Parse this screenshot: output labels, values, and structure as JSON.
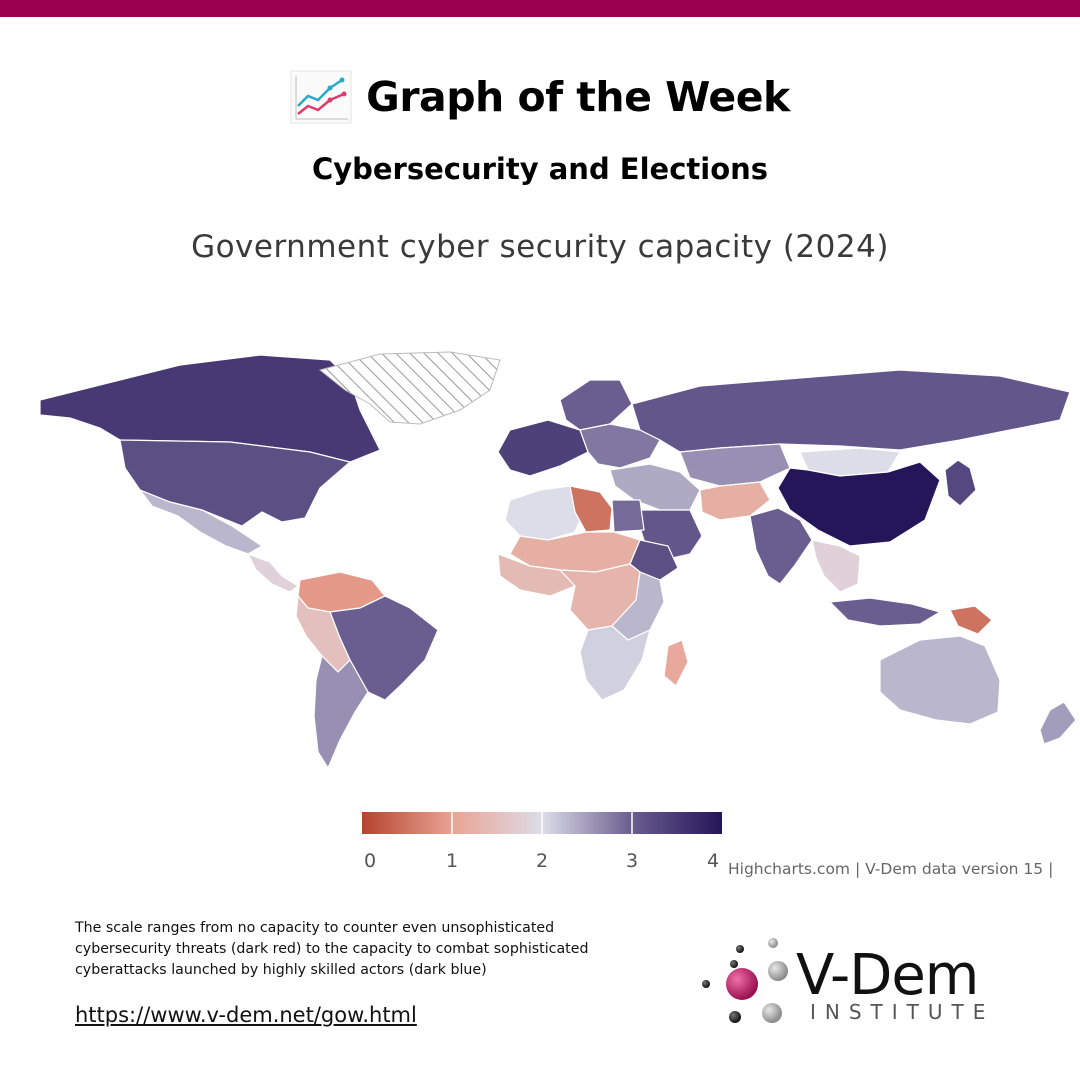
{
  "header": {
    "title": "Graph of the Week",
    "icon": "chart-line-icon",
    "bar_color": "#990050"
  },
  "subtitle": "Cybersecurity and Elections",
  "chart_data": {
    "type": "choropleth",
    "title": "Government cyber security capacity (2024)",
    "legend": {
      "min": 0,
      "max": 4,
      "ticks": [
        "0",
        "1",
        "2",
        "3",
        "4"
      ],
      "colors": [
        "#b5432f",
        "#e9a393",
        "#dcdde8",
        "#6a5d8f",
        "#251559"
      ]
    },
    "regions": [
      {
        "name": "Canada",
        "value": 3.5
      },
      {
        "name": "United States",
        "value": 3.2
      },
      {
        "name": "Mexico",
        "value": 2.3
      },
      {
        "name": "Central America",
        "value": 1.8
      },
      {
        "name": "Colombia/Venezuela",
        "value": 0.9
      },
      {
        "name": "Peru/Bolivia",
        "value": 1.5
      },
      {
        "name": "Brazil",
        "value": 3.0
      },
      {
        "name": "Argentina/Chile",
        "value": 2.6
      },
      {
        "name": "Greenland",
        "value": null
      },
      {
        "name": "Western Europe",
        "value": 3.4
      },
      {
        "name": "Scandinavia",
        "value": 3.0
      },
      {
        "name": "Eastern Europe",
        "value": 2.8
      },
      {
        "name": "Russia",
        "value": 3.1
      },
      {
        "name": "Central Asia",
        "value": 2.6
      },
      {
        "name": "Mongolia",
        "value": 2.0
      },
      {
        "name": "China",
        "value": 4.0
      },
      {
        "name": "Japan/Korea",
        "value": 3.3
      },
      {
        "name": "Middle East",
        "value": 2.4
      },
      {
        "name": "Saudi Arabia",
        "value": 3.1
      },
      {
        "name": "Iran/Afghanistan",
        "value": 1.2
      },
      {
        "name": "India",
        "value": 3.0
      },
      {
        "name": "Southeast Asia",
        "value": 1.8
      },
      {
        "name": "Indonesia",
        "value": 3.0
      },
      {
        "name": "Papua New Guinea",
        "value": 0.5
      },
      {
        "name": "Australia",
        "value": 2.3
      },
      {
        "name": "New Zealand",
        "value": 2.5
      },
      {
        "name": "North Africa",
        "value": 2.0
      },
      {
        "name": "Libya",
        "value": 0.5
      },
      {
        "name": "Egypt",
        "value": 2.9
      },
      {
        "name": "Sahel",
        "value": 1.2
      },
      {
        "name": "West Africa",
        "value": 1.4
      },
      {
        "name": "Ethiopia",
        "value": 3.2
      },
      {
        "name": "Central Africa",
        "value": 1.3
      },
      {
        "name": "East Africa",
        "value": 2.3
      },
      {
        "name": "Southern Africa",
        "value": 2.1
      },
      {
        "name": "Madagascar",
        "value": 1.1
      }
    ]
  },
  "credits": "Highcharts.com | V-Dem data version 15 |",
  "note": "The scale ranges from no capacity to counter even unsophisticated cybersecurity threats (dark red) to the capacity to combat sophisticated cyberattacks launched by highly skilled actors (dark blue)",
  "url": "https://www.v-dem.net/gow.html",
  "logo": {
    "name": "V-Dem",
    "sub": "INSTITUTE",
    "accent": "#b0205f"
  }
}
